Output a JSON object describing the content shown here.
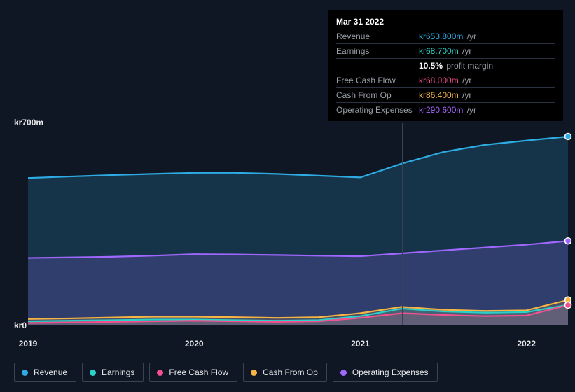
{
  "chart": {
    "type": "area",
    "background_color": "#0f1724",
    "grid_color": "#2a3140",
    "y": {
      "min": 0,
      "max": 700,
      "ticks": [
        {
          "v": 700,
          "label": "kr700m"
        },
        {
          "v": 0,
          "label": "kr0"
        }
      ]
    },
    "x": {
      "min": 2019,
      "max": 2022.25,
      "ticks": [
        {
          "v": 2019,
          "label": "2019"
        },
        {
          "v": 2020,
          "label": "2020"
        },
        {
          "v": 2021,
          "label": "2021"
        },
        {
          "v": 2022,
          "label": "2022"
        }
      ]
    },
    "hover_x": 2021.25,
    "series": [
      {
        "key": "revenue",
        "label": "Revenue",
        "color": "#2dabe2",
        "fill_opacity": 0.2,
        "points": [
          [
            2019,
            510
          ],
          [
            2019.25,
            515
          ],
          [
            2019.5,
            520
          ],
          [
            2019.75,
            524
          ],
          [
            2020,
            528
          ],
          [
            2020.25,
            528
          ],
          [
            2020.5,
            524
          ],
          [
            2020.75,
            518
          ],
          [
            2021,
            512
          ],
          [
            2021.25,
            560
          ],
          [
            2021.5,
            600
          ],
          [
            2021.75,
            625
          ],
          [
            2022,
            640
          ],
          [
            2022.25,
            654
          ]
        ]
      },
      {
        "key": "operating_expenses",
        "label": "Operating Expenses",
        "color": "#a067ff",
        "fill_opacity": 0.2,
        "points": [
          [
            2019,
            232
          ],
          [
            2019.25,
            234
          ],
          [
            2019.5,
            236
          ],
          [
            2019.75,
            240
          ],
          [
            2020,
            245
          ],
          [
            2020.25,
            244
          ],
          [
            2020.5,
            242
          ],
          [
            2020.75,
            240
          ],
          [
            2021,
            238
          ],
          [
            2021.25,
            248
          ],
          [
            2021.5,
            258
          ],
          [
            2021.75,
            268
          ],
          [
            2022,
            278
          ],
          [
            2022.25,
            291
          ]
        ]
      },
      {
        "key": "cash_from_op",
        "label": "Cash From Op",
        "color": "#f6b443",
        "fill_opacity": 0.15,
        "points": [
          [
            2019,
            20
          ],
          [
            2019.25,
            22
          ],
          [
            2019.5,
            25
          ],
          [
            2019.75,
            28
          ],
          [
            2020,
            28
          ],
          [
            2020.25,
            26
          ],
          [
            2020.5,
            24
          ],
          [
            2020.75,
            26
          ],
          [
            2021,
            40
          ],
          [
            2021.25,
            62
          ],
          [
            2021.5,
            52
          ],
          [
            2021.75,
            48
          ],
          [
            2022,
            50
          ],
          [
            2022.25,
            86
          ]
        ]
      },
      {
        "key": "earnings",
        "label": "Earnings",
        "color": "#2ad1c9",
        "fill_opacity": 0.15,
        "points": [
          [
            2019,
            12
          ],
          [
            2019.25,
            14
          ],
          [
            2019.5,
            16
          ],
          [
            2019.75,
            18
          ],
          [
            2020,
            18
          ],
          [
            2020.25,
            16
          ],
          [
            2020.5,
            14
          ],
          [
            2020.75,
            16
          ],
          [
            2021,
            30
          ],
          [
            2021.25,
            56
          ],
          [
            2021.5,
            46
          ],
          [
            2021.75,
            42
          ],
          [
            2022,
            44
          ],
          [
            2022.25,
            69
          ]
        ]
      },
      {
        "key": "free_cash_flow",
        "label": "Free Cash Flow",
        "color": "#f54f8e",
        "fill_opacity": 0.15,
        "points": [
          [
            2019,
            6
          ],
          [
            2019.25,
            8
          ],
          [
            2019.5,
            10
          ],
          [
            2019.75,
            12
          ],
          [
            2020,
            14
          ],
          [
            2020.25,
            12
          ],
          [
            2020.5,
            10
          ],
          [
            2020.75,
            12
          ],
          [
            2021,
            24
          ],
          [
            2021.25,
            40
          ],
          [
            2021.5,
            34
          ],
          [
            2021.75,
            30
          ],
          [
            2022,
            32
          ],
          [
            2022.25,
            68
          ]
        ]
      }
    ],
    "end_markers": true,
    "line_width": 2.2
  },
  "tooltip": {
    "title": "Mar 31 2022",
    "rows": [
      {
        "label": "Revenue",
        "value": "kr653.800m",
        "suffix": "/yr",
        "color": "#2dabe2"
      },
      {
        "label": "Earnings",
        "value": "kr68.700m",
        "suffix": "/yr",
        "color": "#2ad1c9"
      },
      {
        "label": "",
        "pm_pct": "10.5%",
        "pm_text": "profit margin"
      },
      {
        "label": "Free Cash Flow",
        "value": "kr68.000m",
        "suffix": "/yr",
        "color": "#f54f8e"
      },
      {
        "label": "Cash From Op",
        "value": "kr86.400m",
        "suffix": "/yr",
        "color": "#f6b443"
      },
      {
        "label": "Operating Expenses",
        "value": "kr290.600m",
        "suffix": "/yr",
        "color": "#a067ff"
      }
    ]
  },
  "legend": [
    {
      "key": "revenue",
      "label": "Revenue",
      "color": "#2dabe2"
    },
    {
      "key": "earnings",
      "label": "Earnings",
      "color": "#2ad1c9"
    },
    {
      "key": "free_cash_flow",
      "label": "Free Cash Flow",
      "color": "#f54f8e"
    },
    {
      "key": "cash_from_op",
      "label": "Cash From Op",
      "color": "#f6b443"
    },
    {
      "key": "operating_expenses",
      "label": "Operating Expenses",
      "color": "#a067ff"
    }
  ]
}
